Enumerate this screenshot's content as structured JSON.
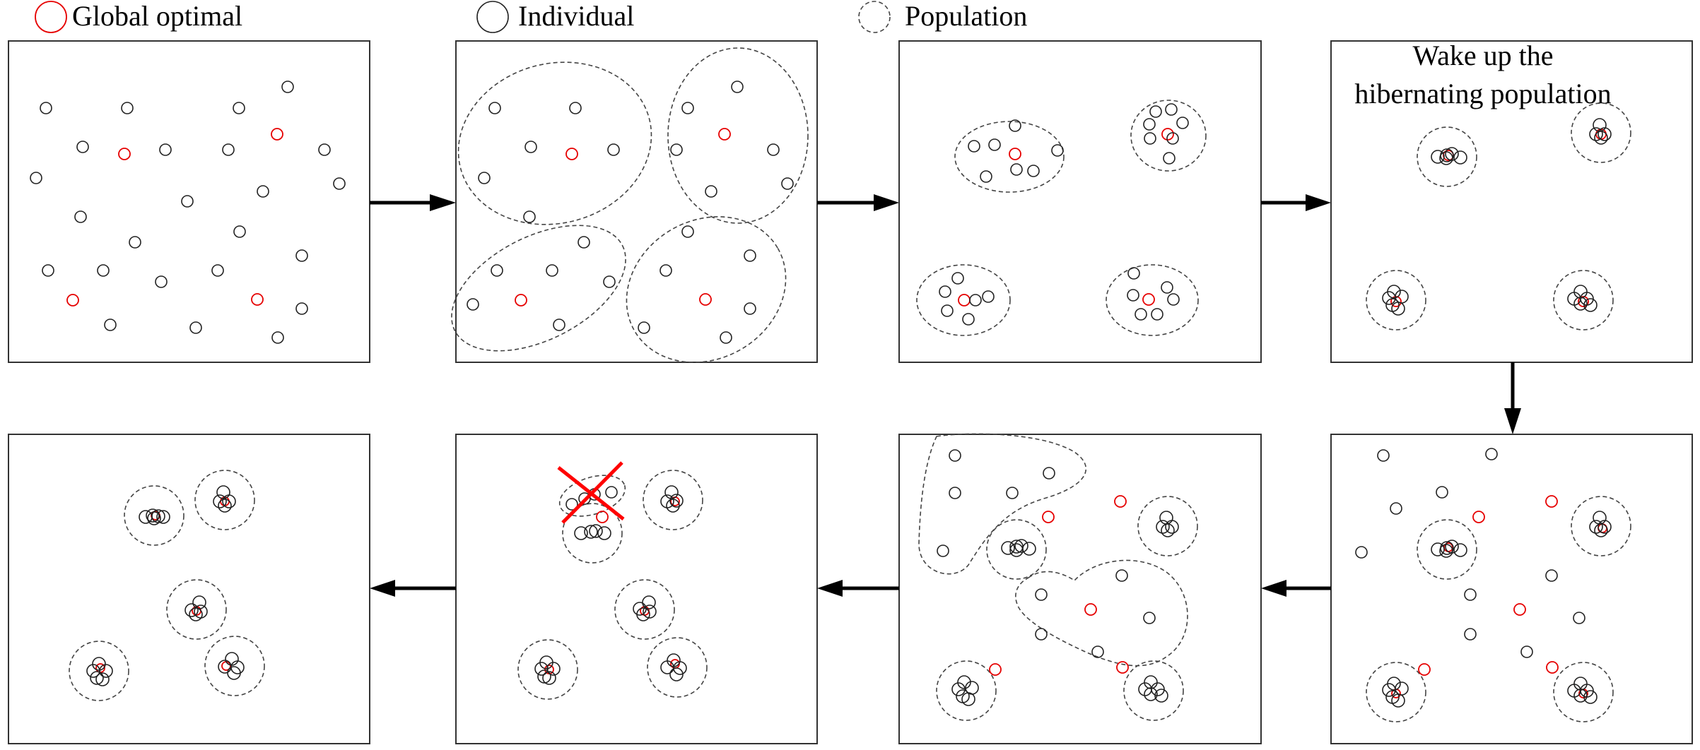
{
  "legend": {
    "global_optimal": "Global optimal",
    "individual": "Individual",
    "population": "Population"
  },
  "panel4_note": {
    "line1": "Wake up the",
    "line2": "hibernating population"
  },
  "colors": {
    "optimal": "#e60000",
    "individual": "#222222",
    "population": "#444444",
    "discarded_mark": "#ff0000"
  },
  "icons": {
    "arrow": "arrow-right-icon",
    "discard": "red-cross-icon"
  }
}
